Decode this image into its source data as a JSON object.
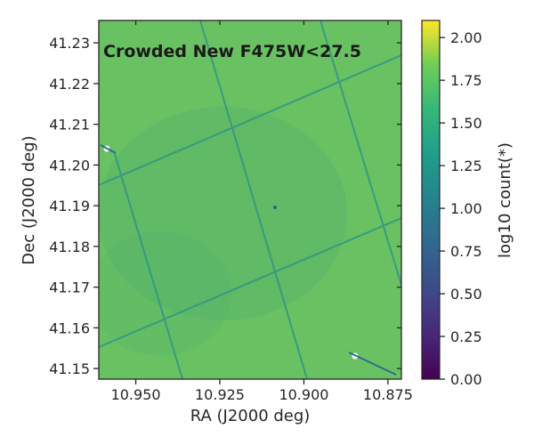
{
  "chart_data": {
    "type": "heatmap",
    "title": "Crowded New F475W<27.5",
    "xlabel": "RA (J2000 deg)",
    "ylabel": "Dec (J2000 deg)",
    "colorbar_label": "log10 count(*)",
    "colormap": "viridis",
    "xlim": [
      10.961,
      10.871
    ],
    "ylim": [
      41.1474,
      41.2355
    ],
    "clim": [
      0.0,
      2.1
    ],
    "x_ticks": [
      10.95,
      10.925,
      10.9,
      10.875
    ],
    "x_tick_labels": [
      "10.950",
      "10.925",
      "10.900",
      "10.875"
    ],
    "y_ticks": [
      41.15,
      41.16,
      41.17,
      41.18,
      41.19,
      41.2,
      41.21,
      41.22,
      41.23
    ],
    "y_tick_labels": [
      "41.15",
      "41.16",
      "41.17",
      "41.18",
      "41.19",
      "41.20",
      "41.21",
      "41.22",
      "41.23"
    ],
    "colorbar_ticks": [
      0.0,
      0.25,
      0.5,
      0.75,
      1.0,
      1.25,
      1.5,
      1.75,
      2.0
    ],
    "colorbar_tick_labels": [
      "0.00",
      "0.25",
      "0.50",
      "0.75",
      "1.00",
      "1.25",
      "1.50",
      "1.75",
      "2.00"
    ],
    "typical_value": 1.55,
    "value_range": [
      1.2,
      1.8
    ],
    "notes_features": {
      "chip_gap_lines_low_value": 1.15,
      "bright_stars": [
        {
          "ra": 10.958,
          "dec": 41.2035
        },
        {
          "ra": 10.8885,
          "dec": 41.1525
        }
      ]
    }
  }
}
